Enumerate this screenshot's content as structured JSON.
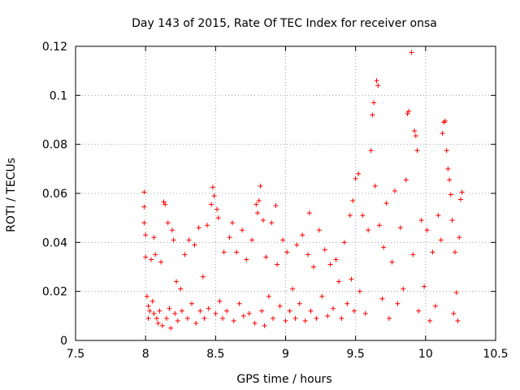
{
  "chart_data": {
    "type": "scatter",
    "title": "Day 143 of 2015, Rate Of TEC Index for receiver onsa",
    "xlabel": "GPS time / hours",
    "ylabel": "ROTI / TECUs",
    "xlim": [
      7.5,
      10.5
    ],
    "ylim": [
      0,
      0.12
    ],
    "xticks": [
      7.5,
      8,
      8.5,
      9,
      9.5,
      10,
      10.5
    ],
    "xtick_labels": [
      "7.5",
      "8",
      "8.5",
      "9",
      "9.5",
      "10",
      "10.5"
    ],
    "yticks": [
      0,
      0.02,
      0.04,
      0.06,
      0.08,
      0.1,
      0.12
    ],
    "ytick_labels": [
      "0",
      "0.02",
      "0.04",
      "0.06",
      "0.08",
      "0.1",
      "0.12"
    ],
    "grid": true,
    "marker": "+",
    "color": "#ff0000",
    "series": [
      {
        "name": "ROTI",
        "points": [
          [
            7.99,
            0.0605
          ],
          [
            7.99,
            0.0545
          ],
          [
            7.99,
            0.048
          ],
          [
            8.0,
            0.043
          ],
          [
            8.0,
            0.034
          ],
          [
            8.01,
            0.018
          ],
          [
            8.02,
            0.014
          ],
          [
            8.02,
            0.009
          ],
          [
            8.03,
            0.012
          ],
          [
            8.04,
            0.033
          ],
          [
            8.05,
            0.016
          ],
          [
            8.06,
            0.011
          ],
          [
            8.06,
            0.042
          ],
          [
            8.07,
            0.035
          ],
          [
            8.08,
            0.009
          ],
          [
            8.09,
            0.007
          ],
          [
            8.1,
            0.012
          ],
          [
            8.11,
            0.032
          ],
          [
            8.12,
            0.006
          ],
          [
            8.13,
            0.0565
          ],
          [
            8.14,
            0.0555
          ],
          [
            8.15,
            0.009
          ],
          [
            8.16,
            0.048
          ],
          [
            8.17,
            0.013
          ],
          [
            8.18,
            0.005
          ],
          [
            8.19,
            0.045
          ],
          [
            8.2,
            0.041
          ],
          [
            8.21,
            0.011
          ],
          [
            8.22,
            0.024
          ],
          [
            8.23,
            0.008
          ],
          [
            8.25,
            0.021
          ],
          [
            8.26,
            0.012
          ],
          [
            8.28,
            0.035
          ],
          [
            8.3,
            0.009
          ],
          [
            8.31,
            0.041
          ],
          [
            8.33,
            0.015
          ],
          [
            8.35,
            0.039
          ],
          [
            8.36,
            0.007
          ],
          [
            8.38,
            0.046
          ],
          [
            8.39,
            0.012
          ],
          [
            8.41,
            0.026
          ],
          [
            8.42,
            0.009
          ],
          [
            8.44,
            0.047
          ],
          [
            8.45,
            0.013
          ],
          [
            8.47,
            0.0555
          ],
          [
            8.48,
            0.0625
          ],
          [
            8.49,
            0.059
          ],
          [
            8.5,
            0.011
          ],
          [
            8.51,
            0.0535
          ],
          [
            8.52,
            0.05
          ],
          [
            8.53,
            0.016
          ],
          [
            8.55,
            0.009
          ],
          [
            8.56,
            0.036
          ],
          [
            8.58,
            0.012
          ],
          [
            8.6,
            0.042
          ],
          [
            8.62,
            0.048
          ],
          [
            8.63,
            0.008
          ],
          [
            8.65,
            0.036
          ],
          [
            8.67,
            0.015
          ],
          [
            8.69,
            0.045
          ],
          [
            8.7,
            0.01
          ],
          [
            8.72,
            0.033
          ],
          [
            8.74,
            0.011
          ],
          [
            8.76,
            0.041
          ],
          [
            8.78,
            0.007
          ],
          [
            8.79,
            0.0555
          ],
          [
            8.8,
            0.052
          ],
          [
            8.81,
            0.057
          ],
          [
            8.82,
            0.063
          ],
          [
            8.83,
            0.012
          ],
          [
            8.84,
            0.049
          ],
          [
            8.85,
            0.006
          ],
          [
            8.86,
            0.034
          ],
          [
            8.88,
            0.018
          ],
          [
            8.9,
            0.048
          ],
          [
            8.91,
            0.009
          ],
          [
            8.93,
            0.055
          ],
          [
            8.94,
            0.031
          ],
          [
            8.96,
            0.014
          ],
          [
            8.98,
            0.041
          ],
          [
            9.0,
            0.008
          ],
          [
            9.01,
            0.036
          ],
          [
            9.03,
            0.012
          ],
          [
            9.05,
            0.021
          ],
          [
            9.07,
            0.009
          ],
          [
            9.08,
            0.039
          ],
          [
            9.1,
            0.015
          ],
          [
            9.12,
            0.043
          ],
          [
            9.14,
            0.008
          ],
          [
            9.16,
            0.035
          ],
          [
            9.17,
            0.052
          ],
          [
            9.18,
            0.012
          ],
          [
            9.2,
            0.03
          ],
          [
            9.22,
            0.009
          ],
          [
            9.24,
            0.045
          ],
          [
            9.26,
            0.018
          ],
          [
            9.28,
            0.037
          ],
          [
            9.3,
            0.01
          ],
          [
            9.32,
            0.031
          ],
          [
            9.34,
            0.013
          ],
          [
            9.36,
            0.033
          ],
          [
            9.38,
            0.024
          ],
          [
            9.4,
            0.009
          ],
          [
            9.42,
            0.04
          ],
          [
            9.44,
            0.015
          ],
          [
            9.46,
            0.051
          ],
          [
            9.47,
            0.025
          ],
          [
            9.48,
            0.057
          ],
          [
            9.49,
            0.012
          ],
          [
            9.5,
            0.066
          ],
          [
            9.52,
            0.068
          ],
          [
            9.53,
            0.02
          ],
          [
            9.55,
            0.051
          ],
          [
            9.57,
            0.011
          ],
          [
            9.59,
            0.045
          ],
          [
            9.61,
            0.0775
          ],
          [
            9.62,
            0.092
          ],
          [
            9.63,
            0.097
          ],
          [
            9.64,
            0.063
          ],
          [
            9.65,
            0.106
          ],
          [
            9.66,
            0.104
          ],
          [
            9.67,
            0.047
          ],
          [
            9.69,
            0.017
          ],
          [
            9.7,
            0.038
          ],
          [
            9.72,
            0.056
          ],
          [
            9.74,
            0.009
          ],
          [
            9.76,
            0.032
          ],
          [
            9.78,
            0.061
          ],
          [
            9.8,
            0.015
          ],
          [
            9.82,
            0.046
          ],
          [
            9.84,
            0.021
          ],
          [
            9.86,
            0.0655
          ],
          [
            9.87,
            0.0925
          ],
          [
            9.88,
            0.0935
          ],
          [
            9.9,
            0.1175
          ],
          [
            9.91,
            0.035
          ],
          [
            9.92,
            0.0855
          ],
          [
            9.93,
            0.0835
          ],
          [
            9.94,
            0.0775
          ],
          [
            9.95,
            0.012
          ],
          [
            9.97,
            0.049
          ],
          [
            9.99,
            0.022
          ],
          [
            10.01,
            0.045
          ],
          [
            10.03,
            0.008
          ],
          [
            10.05,
            0.036
          ],
          [
            10.07,
            0.014
          ],
          [
            10.09,
            0.051
          ],
          [
            10.11,
            0.041
          ],
          [
            10.12,
            0.0845
          ],
          [
            10.13,
            0.089
          ],
          [
            10.14,
            0.0895
          ],
          [
            10.15,
            0.0775
          ],
          [
            10.16,
            0.07
          ],
          [
            10.17,
            0.0655
          ],
          [
            10.18,
            0.0595
          ],
          [
            10.19,
            0.049
          ],
          [
            10.2,
            0.011
          ],
          [
            10.21,
            0.036
          ],
          [
            10.22,
            0.0195
          ],
          [
            10.23,
            0.008
          ],
          [
            10.24,
            0.042
          ],
          [
            10.25,
            0.0575
          ],
          [
            10.26,
            0.0605
          ]
        ]
      }
    ]
  }
}
